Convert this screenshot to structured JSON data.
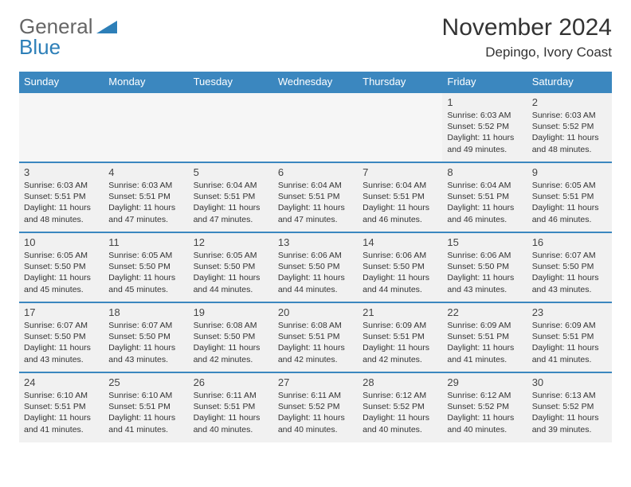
{
  "logo": {
    "general": "General",
    "blue": "Blue"
  },
  "title": "November 2024",
  "location": "Depingo, Ivory Coast",
  "dow": [
    "Sunday",
    "Monday",
    "Tuesday",
    "Wednesday",
    "Thursday",
    "Friday",
    "Saturday"
  ],
  "colors": {
    "header_bg": "#3b87bf",
    "header_text": "#ffffff",
    "row_border": "#3b87bf",
    "cell_bg": "#f1f1f1",
    "logo_blue": "#2d7fb8"
  },
  "weeks": [
    [
      null,
      null,
      null,
      null,
      null,
      {
        "n": "1",
        "sr": "6:03 AM",
        "ss": "5:52 PM",
        "dl": "11 hours and 49 minutes."
      },
      {
        "n": "2",
        "sr": "6:03 AM",
        "ss": "5:52 PM",
        "dl": "11 hours and 48 minutes."
      }
    ],
    [
      {
        "n": "3",
        "sr": "6:03 AM",
        "ss": "5:51 PM",
        "dl": "11 hours and 48 minutes."
      },
      {
        "n": "4",
        "sr": "6:03 AM",
        "ss": "5:51 PM",
        "dl": "11 hours and 47 minutes."
      },
      {
        "n": "5",
        "sr": "6:04 AM",
        "ss": "5:51 PM",
        "dl": "11 hours and 47 minutes."
      },
      {
        "n": "6",
        "sr": "6:04 AM",
        "ss": "5:51 PM",
        "dl": "11 hours and 47 minutes."
      },
      {
        "n": "7",
        "sr": "6:04 AM",
        "ss": "5:51 PM",
        "dl": "11 hours and 46 minutes."
      },
      {
        "n": "8",
        "sr": "6:04 AM",
        "ss": "5:51 PM",
        "dl": "11 hours and 46 minutes."
      },
      {
        "n": "9",
        "sr": "6:05 AM",
        "ss": "5:51 PM",
        "dl": "11 hours and 46 minutes."
      }
    ],
    [
      {
        "n": "10",
        "sr": "6:05 AM",
        "ss": "5:50 PM",
        "dl": "11 hours and 45 minutes."
      },
      {
        "n": "11",
        "sr": "6:05 AM",
        "ss": "5:50 PM",
        "dl": "11 hours and 45 minutes."
      },
      {
        "n": "12",
        "sr": "6:05 AM",
        "ss": "5:50 PM",
        "dl": "11 hours and 44 minutes."
      },
      {
        "n": "13",
        "sr": "6:06 AM",
        "ss": "5:50 PM",
        "dl": "11 hours and 44 minutes."
      },
      {
        "n": "14",
        "sr": "6:06 AM",
        "ss": "5:50 PM",
        "dl": "11 hours and 44 minutes."
      },
      {
        "n": "15",
        "sr": "6:06 AM",
        "ss": "5:50 PM",
        "dl": "11 hours and 43 minutes."
      },
      {
        "n": "16",
        "sr": "6:07 AM",
        "ss": "5:50 PM",
        "dl": "11 hours and 43 minutes."
      }
    ],
    [
      {
        "n": "17",
        "sr": "6:07 AM",
        "ss": "5:50 PM",
        "dl": "11 hours and 43 minutes."
      },
      {
        "n": "18",
        "sr": "6:07 AM",
        "ss": "5:50 PM",
        "dl": "11 hours and 43 minutes."
      },
      {
        "n": "19",
        "sr": "6:08 AM",
        "ss": "5:50 PM",
        "dl": "11 hours and 42 minutes."
      },
      {
        "n": "20",
        "sr": "6:08 AM",
        "ss": "5:51 PM",
        "dl": "11 hours and 42 minutes."
      },
      {
        "n": "21",
        "sr": "6:09 AM",
        "ss": "5:51 PM",
        "dl": "11 hours and 42 minutes."
      },
      {
        "n": "22",
        "sr": "6:09 AM",
        "ss": "5:51 PM",
        "dl": "11 hours and 41 minutes."
      },
      {
        "n": "23",
        "sr": "6:09 AM",
        "ss": "5:51 PM",
        "dl": "11 hours and 41 minutes."
      }
    ],
    [
      {
        "n": "24",
        "sr": "6:10 AM",
        "ss": "5:51 PM",
        "dl": "11 hours and 41 minutes."
      },
      {
        "n": "25",
        "sr": "6:10 AM",
        "ss": "5:51 PM",
        "dl": "11 hours and 41 minutes."
      },
      {
        "n": "26",
        "sr": "6:11 AM",
        "ss": "5:51 PM",
        "dl": "11 hours and 40 minutes."
      },
      {
        "n": "27",
        "sr": "6:11 AM",
        "ss": "5:52 PM",
        "dl": "11 hours and 40 minutes."
      },
      {
        "n": "28",
        "sr": "6:12 AM",
        "ss": "5:52 PM",
        "dl": "11 hours and 40 minutes."
      },
      {
        "n": "29",
        "sr": "6:12 AM",
        "ss": "5:52 PM",
        "dl": "11 hours and 40 minutes."
      },
      {
        "n": "30",
        "sr": "6:13 AM",
        "ss": "5:52 PM",
        "dl": "11 hours and 39 minutes."
      }
    ]
  ],
  "labels": {
    "sunrise": "Sunrise: ",
    "sunset": "Sunset: ",
    "daylight": "Daylight: "
  }
}
